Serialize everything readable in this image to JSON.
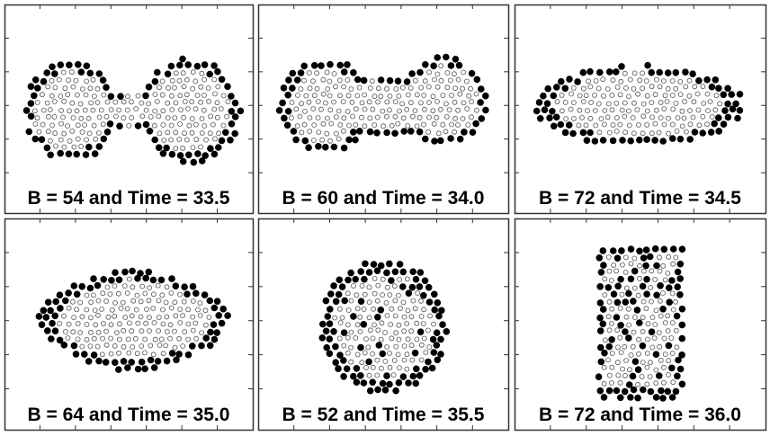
{
  "panels": [
    {
      "caption": "B = 54 and Time = 33.5"
    },
    {
      "caption": "B = 60 and Time = 34.0"
    },
    {
      "caption": "B = 72 and Time = 34.5"
    },
    {
      "caption": "B = 64 and Time = 35.0"
    },
    {
      "caption": "B = 52 and Time = 35.5"
    },
    {
      "caption": "B = 72 and Time = 36.0"
    }
  ]
}
